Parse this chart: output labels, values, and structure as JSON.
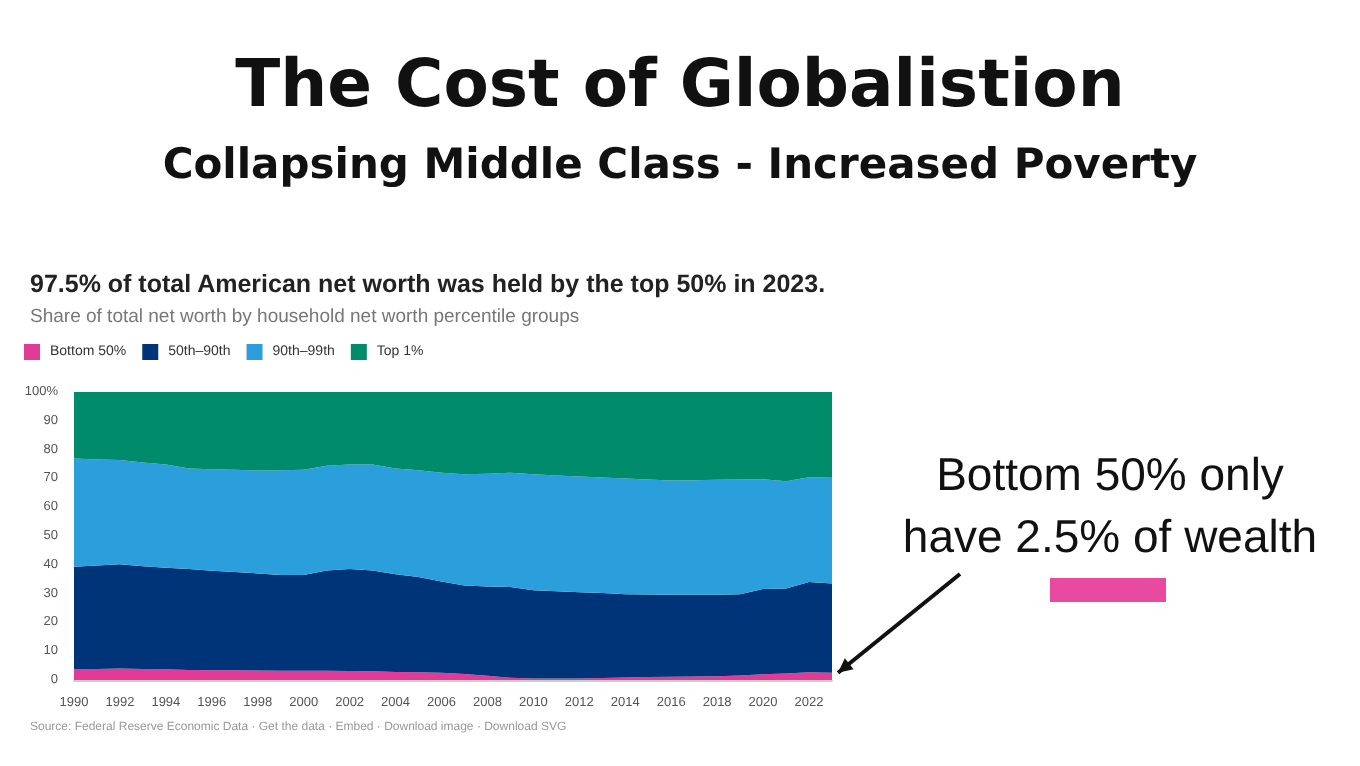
{
  "chart_data": {
    "type": "area",
    "stacked": true,
    "title": "The Cost of Globalistion",
    "subtitle": "Collapsing Middle Class - Increased Poverty",
    "annotations": [
      "97.5% of total American net worth was held by the top 50% in 2023.",
      "Share of total net worth by household net worth percentile groups",
      {
        "text": "Bottom 50% only have 2.5% of wealth",
        "x": 2023,
        "y": 2.5
      },
      "Source: Federal Reserve Economic Data · Get the data · Embed · Download image · Download SVG"
    ],
    "x": [
      1990,
      1991,
      1992,
      1993,
      1994,
      1995,
      1996,
      1997,
      1998,
      1999,
      2000,
      2001,
      2002,
      2003,
      2004,
      2005,
      2006,
      2007,
      2008,
      2009,
      2010,
      2011,
      2012,
      2013,
      2014,
      2015,
      2016,
      2017,
      2018,
      2019,
      2020,
      2021,
      2022,
      2023
    ],
    "xlim": [
      1990,
      2023
    ],
    "xticks": [
      1990,
      1992,
      1994,
      1996,
      1998,
      2000,
      2002,
      2004,
      2006,
      2008,
      2010,
      2012,
      2014,
      2016,
      2018,
      2020,
      2022
    ],
    "ylim": [
      0,
      100
    ],
    "yticks": [
      0,
      10,
      20,
      30,
      40,
      50,
      60,
      70,
      80,
      90,
      {
        "value": 100,
        "label": "100%"
      }
    ],
    "legend": "top left",
    "series": [
      {
        "name": "Bottom 50%",
        "color": "#e23b97",
        "values": [
          3.7,
          3.8,
          4.0,
          3.8,
          3.7,
          3.5,
          3.4,
          3.4,
          3.3,
          3.2,
          3.2,
          3.2,
          3.1,
          3.0,
          2.8,
          2.7,
          2.5,
          2.1,
          1.5,
          0.8,
          0.5,
          0.5,
          0.5,
          0.7,
          0.9,
          1.0,
          1.1,
          1.2,
          1.3,
          1.6,
          2.0,
          2.3,
          2.7,
          2.5
        ]
      },
      {
        "name": "50th–90th",
        "color": "#003478",
        "values": [
          35.6,
          36.0,
          36.2,
          35.7,
          35.3,
          35.0,
          34.5,
          34.1,
          33.7,
          33.3,
          33.3,
          34.8,
          35.4,
          35.0,
          33.9,
          33.1,
          31.7,
          30.7,
          31.0,
          31.5,
          30.7,
          30.3,
          30.0,
          29.5,
          28.9,
          28.7,
          28.5,
          28.4,
          28.3,
          28.2,
          29.6,
          29.5,
          31.3,
          31.0
        ]
      },
      {
        "name": "90th–99th",
        "color": "#2b9fdc",
        "values": [
          37.6,
          36.8,
          36.2,
          36.0,
          35.8,
          34.9,
          35.3,
          35.5,
          35.7,
          36.3,
          36.5,
          36.4,
          36.3,
          36.8,
          36.7,
          37.0,
          37.8,
          38.6,
          39.1,
          39.7,
          40.2,
          40.2,
          40.2,
          40.1,
          40.2,
          39.9,
          39.7,
          39.8,
          39.9,
          39.8,
          38.1,
          37.2,
          36.4,
          36.7
        ]
      },
      {
        "name": "Top 1%",
        "color": "#008c6b",
        "values": [
          23.1,
          23.4,
          23.6,
          24.5,
          25.2,
          26.6,
          26.8,
          27.0,
          27.3,
          27.2,
          27.0,
          25.6,
          25.2,
          25.2,
          26.6,
          27.2,
          28.0,
          28.6,
          28.4,
          28.0,
          28.6,
          29.0,
          29.3,
          29.7,
          30.0,
          30.4,
          30.7,
          30.6,
          30.5,
          30.4,
          30.3,
          31.0,
          29.6,
          29.8
        ]
      }
    ]
  }
}
